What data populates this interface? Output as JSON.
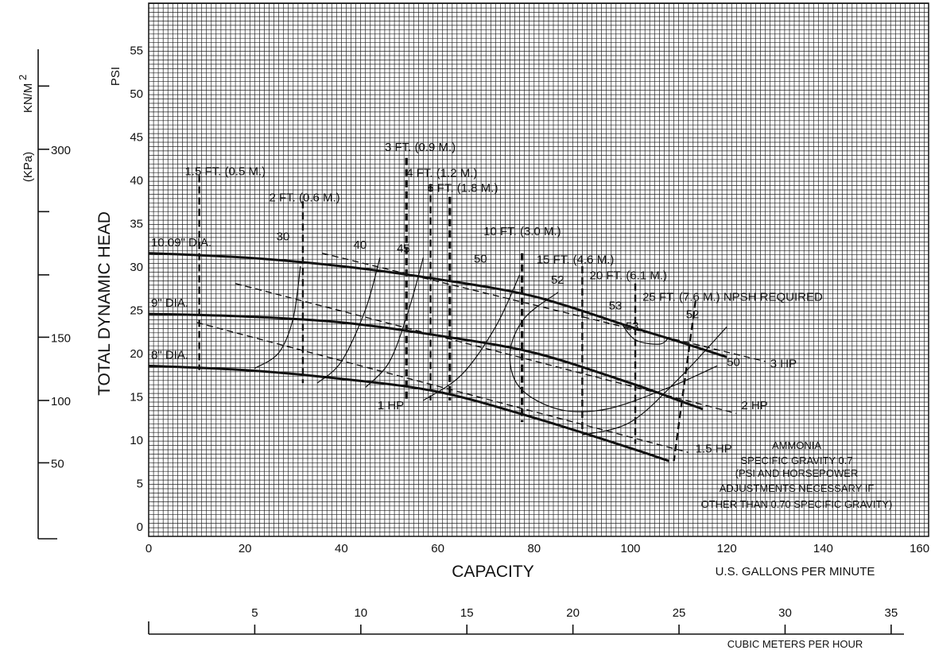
{
  "chart_data": {
    "type": "line",
    "x_axis": {
      "label": "CAPACITY",
      "units": "U.S. GALLONS PER MINUTE",
      "range": [
        0,
        175
      ],
      "ticks": [
        0,
        20,
        40,
        60,
        80,
        100,
        120,
        140,
        160
      ]
    },
    "x2_axis": {
      "units": "CUBIC METERS PER HOUR",
      "ticks": [
        5,
        10,
        15,
        20,
        25,
        30,
        35
      ]
    },
    "y_axis": {
      "label": "TOTAL DYNAMIC HEAD",
      "units": "PSI",
      "range": [
        0,
        59
      ],
      "ticks": [
        0,
        5,
        10,
        15,
        20,
        25,
        30,
        35,
        40,
        45,
        50,
        55
      ]
    },
    "y2_axis": {
      "units_top": "KN/M",
      "units_top_sup": "2",
      "units_bottom": "(KPa)",
      "ticks": [
        {
          "label": "",
          "psi": 50.8
        },
        {
          "label": "300",
          "psi": 43.5
        },
        {
          "label": "",
          "psi": 36.3
        },
        {
          "label": "",
          "psi": 29.0
        },
        {
          "label": "150",
          "psi": 21.8
        },
        {
          "label": "100",
          "psi": 14.5
        },
        {
          "label": "50",
          "psi": 7.3
        }
      ]
    },
    "grid": true,
    "series": [
      {
        "name": "10.09\" DIA.",
        "x": [
          0,
          20,
          40,
          60,
          80,
          100,
          110,
          120
        ],
        "y": [
          31.5,
          31,
          30,
          28.5,
          26.5,
          23,
          21.3,
          19.5
        ]
      },
      {
        "name": "9\" DIA.",
        "x": [
          0,
          20,
          40,
          60,
          80,
          100,
          110,
          115
        ],
        "y": [
          24.5,
          24.2,
          23.5,
          22,
          20,
          16.5,
          14.5,
          13.5
        ]
      },
      {
        "name": "8\" DIA.",
        "x": [
          0,
          20,
          40,
          60,
          80,
          100,
          108
        ],
        "y": [
          18.5,
          18,
          17,
          15.5,
          12.5,
          9,
          7.5
        ]
      }
    ],
    "hp_lines": [
      {
        "label": "3 HP",
        "x": [
          36,
          128
        ],
        "y": [
          31.5,
          19
        ]
      },
      {
        "label": "2 HP",
        "x": [
          18,
          122
        ],
        "y": [
          28,
          13
        ]
      },
      {
        "label": "1.5 HP",
        "x": [
          10,
          112
        ],
        "y": [
          23.5,
          8.5
        ]
      },
      {
        "label": "1 HP",
        "x": [
          50,
          62
        ],
        "y": [
          15.5,
          14.5
        ]
      }
    ],
    "efficiency_labels": [
      "30",
      "40",
      "45",
      "50",
      "52",
      "53",
      "53",
      "52",
      "50"
    ],
    "npsh_lines": [
      {
        "label": "1.5 FT. (0.5 M.)",
        "x": 10.5,
        "y_top": 40.5,
        "y_bottom": 18
      },
      {
        "label": "2 FT. (0.6 M.)",
        "x": 32,
        "y_top": 37.5,
        "y_bottom": 16.5
      },
      {
        "label": "3 FT. (0.9 M.)",
        "x": 53.5,
        "y_top": 42.5,
        "y_bottom": 14.5
      },
      {
        "label": "4 FT. (1.2 M.)",
        "x": 58.5,
        "y_top": 39.5,
        "y_bottom": 14.5
      },
      {
        "label": "6 FT. (1.8 M.)",
        "x": 62.5,
        "y_top": 38,
        "y_bottom": 14.5
      },
      {
        "label": "10 FT. (3.0 M.)",
        "x": 77.5,
        "y_top": 31.5,
        "y_bottom": 12
      },
      {
        "label": "15 FT. (4.6 M.)",
        "x": 90,
        "y_top": 30,
        "y_bottom": 11
      },
      {
        "label": "20 FT. (6.1 M.)",
        "x": 101,
        "y_top": 28,
        "y_bottom": 9.5
      },
      {
        "label": "25 FT. (7.6 M.) NPSH REQUIRED",
        "x": 113.5,
        "y_top": 26,
        "y_bottom": 7.5
      }
    ],
    "annotation": [
      "AMMONIA",
      "SPECIFIC GRAVITY 0.7",
      "(PSI AND HORSEPOWER",
      "ADJUSTMENTS NECESSARY IF",
      "OTHER THAN 0.70 SPECIFIC GRAVITY)"
    ]
  }
}
